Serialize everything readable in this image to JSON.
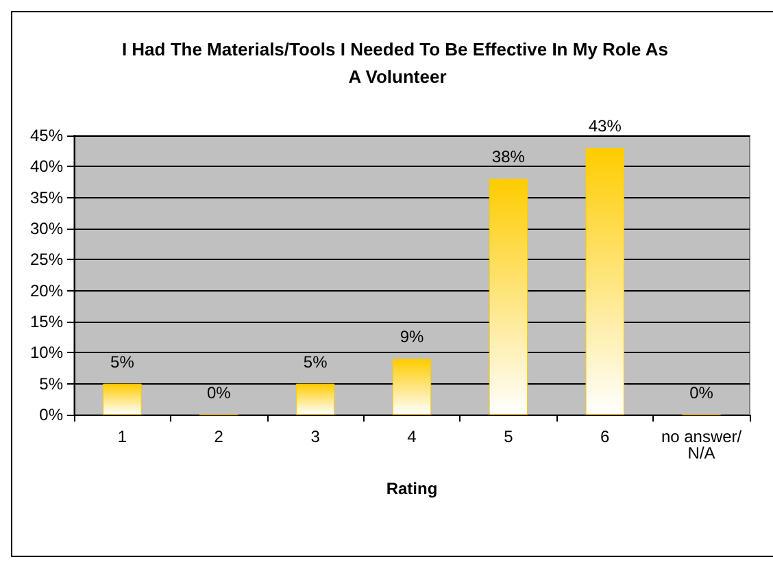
{
  "chart_data": {
    "type": "bar",
    "title": "I Had The Materials/Tools I Needed To Be Effective In My Role As A Volunteer",
    "xlabel": "Rating",
    "categories": [
      "1",
      "2",
      "3",
      "4",
      "5",
      "6",
      "no answer/N/A"
    ],
    "values": [
      5,
      0,
      5,
      9,
      38,
      43,
      0
    ],
    "value_labels": [
      "5%",
      "0%",
      "5%",
      "9%",
      "38%",
      "43%",
      "0%"
    ],
    "color": "#ffcc00",
    "ylim": [
      0,
      45
    ],
    "yticks": [
      {
        "value": 0,
        "label": "0%"
      },
      {
        "value": 5,
        "label": "5%"
      },
      {
        "value": 10,
        "label": "10%"
      },
      {
        "value": 15,
        "label": "15%"
      },
      {
        "value": 20,
        "label": "20%"
      },
      {
        "value": 25,
        "label": "25%"
      },
      {
        "value": 30,
        "label": "30%"
      },
      {
        "value": 35,
        "label": "35%"
      },
      {
        "value": 40,
        "label": "40%"
      },
      {
        "value": 45,
        "label": "45%"
      }
    ],
    "grid": "y"
  }
}
